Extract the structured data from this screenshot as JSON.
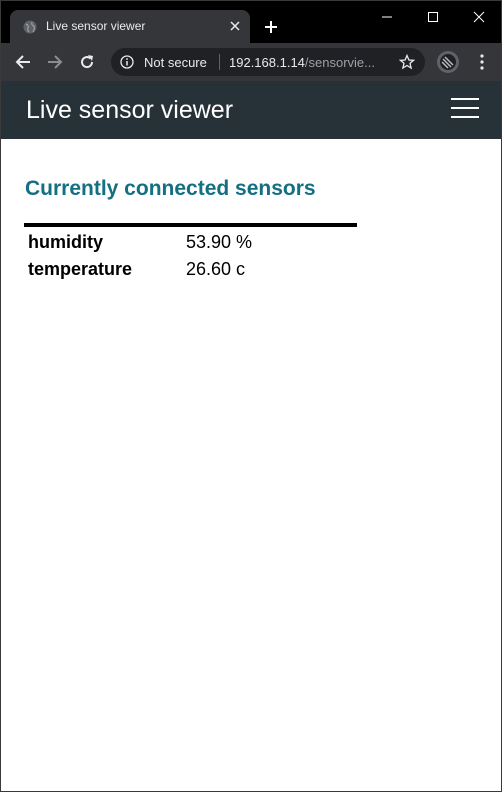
{
  "browser": {
    "tab": {
      "title": "Live sensor viewer",
      "favicon": "globe-icon"
    },
    "window_controls": [
      "minimize-icon",
      "maximize-icon",
      "close-icon"
    ],
    "address_bar": {
      "security_label": "Not secure",
      "url_host": "192.168.1.14",
      "url_path": "/sensorvie..."
    }
  },
  "app": {
    "title": "Live sensor viewer",
    "header_color": "#263238",
    "menu_icon": "hamburger-icon"
  },
  "main": {
    "heading": "Currently connected sensors",
    "heading_color": "#136f81",
    "sensors": [
      {
        "name": "humidity",
        "value": "53.90 %"
      },
      {
        "name": "temperature",
        "value": "26.60 c"
      }
    ]
  }
}
